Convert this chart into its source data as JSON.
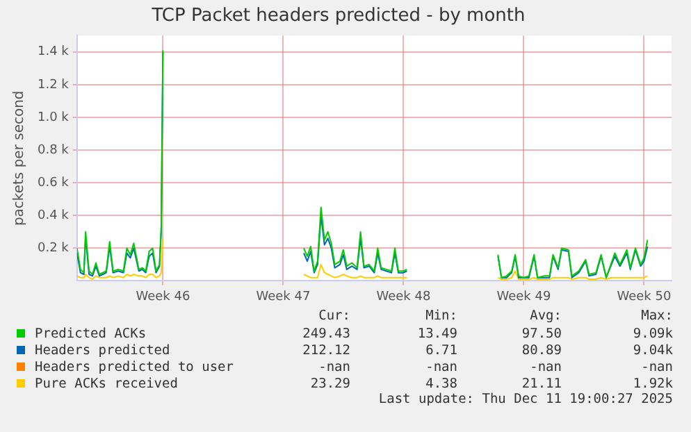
{
  "chart_data": {
    "type": "line",
    "title": "TCP Packet headers predicted - by month",
    "ylabel": "packets per second",
    "x": [
      "2025-11-07T00:00",
      "2025-11-07T04:48",
      "2025-11-07T09:36",
      "2025-11-07T12:00",
      "2025-11-07T16:48",
      "2025-11-07T21:36",
      "2025-11-08T02:24",
      "2025-11-08T07:12",
      "2025-11-08T12:00",
      "2025-11-08T16:48",
      "2025-11-08T21:36",
      "2025-11-09T02:24",
      "2025-11-09T09:36",
      "2025-11-09T16:48",
      "2025-11-09T21:36",
      "2025-11-10T02:24",
      "2025-11-10T07:12",
      "2025-11-10T14:24",
      "2025-11-10T19:12",
      "2025-11-11T00:00",
      "2025-11-11T04:48",
      "2025-11-11T09:36",
      "2025-11-11T14:24",
      "2025-11-11T19:12",
      "2025-11-11T21:36",
      "2025-11-12T00:00",
      "2025-11-16T00:00",
      "2025-11-20T04:48",
      "2025-11-20T09:36",
      "2025-11-20T14:24",
      "2025-11-20T19:12",
      "2025-11-21T00:00",
      "2025-11-21T04:48",
      "2025-11-21T09:36",
      "2025-11-21T14:24",
      "2025-11-21T19:12",
      "2025-11-22T00:00",
      "2025-11-22T07:12",
      "2025-11-22T12:00",
      "2025-11-22T16:48",
      "2025-11-23T00:00",
      "2025-11-23T07:12",
      "2025-11-23T12:00",
      "2025-11-23T16:48",
      "2025-11-24T00:00",
      "2025-11-24T07:12",
      "2025-11-24T12:00",
      "2025-11-24T16:48",
      "2025-11-25T00:00",
      "2025-11-25T07:12",
      "2025-11-25T12:00",
      "2025-11-25T16:48",
      "2025-11-26T00:00",
      "2025-11-26T04:48",
      "2025-11-29T00:00",
      "2025-12-01T12:00",
      "2025-12-01T16:48",
      "2025-12-02T00:00",
      "2025-12-02T07:12",
      "2025-12-02T12:00",
      "2025-12-02T16:48",
      "2025-12-03T00:00",
      "2025-12-03T07:12",
      "2025-12-03T14:24",
      "2025-12-03T19:12",
      "2025-12-04T04:48",
      "2025-12-04T12:00",
      "2025-12-04T16:48",
      "2025-12-05T00:00",
      "2025-12-05T04:48",
      "2025-12-05T14:24",
      "2025-12-05T19:12",
      "2025-12-06T04:48",
      "2025-12-06T14:24",
      "2025-12-06T19:12",
      "2025-12-07T04:48",
      "2025-12-07T12:00",
      "2025-12-07T19:12",
      "2025-12-08T02:24",
      "2025-12-08T07:12",
      "2025-12-08T14:24",
      "2025-12-09T00:00",
      "2025-12-09T04:48",
      "2025-12-09T12:00",
      "2025-12-09T19:12",
      "2025-12-10T00:00",
      "2025-12-10T04:48"
    ],
    "series": [
      {
        "name": "Predicted ACKs",
        "color": "#00cc00",
        "values": [
          200,
          70,
          50,
          300,
          60,
          40,
          110,
          40,
          50,
          60,
          240,
          60,
          70,
          60,
          200,
          160,
          230,
          70,
          80,
          60,
          180,
          200,
          60,
          100,
          330,
          1410,
          null,
          200,
          150,
          210,
          60,
          120,
          450,
          250,
          300,
          230,
          100,
          120,
          190,
          90,
          110,
          80,
          300,
          90,
          100,
          60,
          200,
          80,
          70,
          60,
          200,
          60,
          60,
          70,
          null,
          160,
          20,
          30,
          60,
          160,
          30,
          20,
          30,
          160,
          20,
          30,
          30,
          160,
          80,
          200,
          190,
          30,
          60,
          130,
          40,
          50,
          160,
          20,
          110,
          170,
          100,
          190,
          80,
          200,
          100,
          140,
          250
        ]
      },
      {
        "name": "Headers predicted",
        "color": "#0066b3",
        "values": [
          170,
          50,
          40,
          270,
          40,
          30,
          90,
          30,
          40,
          50,
          210,
          50,
          60,
          50,
          170,
          140,
          200,
          60,
          70,
          50,
          150,
          170,
          50,
          90,
          300,
          1400,
          null,
          170,
          120,
          180,
          50,
          100,
          400,
          220,
          260,
          200,
          80,
          100,
          160,
          70,
          90,
          70,
          260,
          80,
          90,
          50,
          170,
          70,
          60,
          50,
          170,
          50,
          50,
          60,
          null,
          150,
          20,
          20,
          50,
          150,
          20,
          20,
          20,
          150,
          20,
          20,
          20,
          150,
          70,
          190,
          180,
          20,
          50,
          120,
          30,
          40,
          150,
          20,
          100,
          150,
          90,
          170,
          70,
          190,
          90,
          120,
          210
        ]
      },
      {
        "name": "Headers predicted to user",
        "color": "#ff8000",
        "values": [
          null,
          null,
          null,
          null,
          null,
          null,
          null,
          null,
          null,
          null,
          null,
          null,
          null,
          null,
          null,
          null,
          null,
          null,
          null,
          null,
          null,
          null,
          null,
          null,
          null,
          null,
          null,
          null,
          null,
          null,
          null,
          null,
          null,
          null,
          null,
          null,
          null,
          null,
          null,
          null,
          null,
          null,
          null,
          null,
          null,
          null,
          null,
          null,
          null,
          null,
          null,
          null,
          null,
          null,
          null,
          null,
          null,
          null,
          null,
          null,
          null,
          null,
          null,
          null,
          null,
          null,
          null,
          null,
          null,
          null,
          null,
          null,
          null,
          null,
          null,
          null,
          null,
          null,
          null,
          null,
          null,
          null,
          null,
          null,
          null,
          null,
          null
        ]
      },
      {
        "name": "Pure ACKs received",
        "color": "#ffcc00",
        "values": [
          30,
          20,
          20,
          40,
          20,
          10,
          30,
          20,
          20,
          20,
          30,
          20,
          30,
          20,
          40,
          30,
          40,
          30,
          30,
          20,
          40,
          40,
          20,
          30,
          50,
          260,
          null,
          40,
          30,
          20,
          20,
          20,
          100,
          50,
          40,
          30,
          20,
          30,
          40,
          30,
          20,
          20,
          30,
          20,
          20,
          20,
          30,
          20,
          20,
          20,
          20,
          20,
          20,
          20,
          null,
          20,
          10,
          10,
          20,
          60,
          10,
          10,
          10,
          20,
          10,
          10,
          10,
          20,
          20,
          20,
          20,
          10,
          20,
          20,
          10,
          10,
          20,
          10,
          20,
          20,
          20,
          20,
          20,
          20,
          20,
          20,
          30
        ]
      }
    ],
    "xlim": [
      "2025-11-07T00:00",
      "2025-12-11T14:24"
    ],
    "xticks": [
      {
        "value": "2025-11-12",
        "label": "Week 46"
      },
      {
        "value": "2025-11-19",
        "label": "Week 47"
      },
      {
        "value": "2025-11-26",
        "label": "Week 48"
      },
      {
        "value": "2025-12-03",
        "label": "Week 49"
      },
      {
        "value": "2025-12-10",
        "label": "Week 50"
      }
    ],
    "ylim": [
      0,
      1500
    ],
    "yticks": [
      {
        "value": 200,
        "label": "0.2 k"
      },
      {
        "value": 400,
        "label": "0.4 k"
      },
      {
        "value": 600,
        "label": "0.6 k"
      },
      {
        "value": 800,
        "label": "0.8 k"
      },
      {
        "value": 1000,
        "label": "1.0 k"
      },
      {
        "value": 1200,
        "label": "1.2 k"
      },
      {
        "value": 1400,
        "label": "1.4 k"
      }
    ],
    "grid": true,
    "legend": "bottom",
    "marker": "none",
    "line_style": "solid",
    "annotations": [
      "Cur:",
      "Min:",
      "Avg:",
      "Max:",
      "249.43",
      "13.49",
      "97.50",
      "9.09k",
      "212.12",
      "6.71",
      "80.89",
      "9.04k",
      "-nan",
      "-nan",
      "-nan",
      "-nan",
      "23.29",
      "4.38",
      "21.11",
      "1.92k",
      "Last update: Thu Dec 11 19:00:27 2025"
    ]
  }
}
